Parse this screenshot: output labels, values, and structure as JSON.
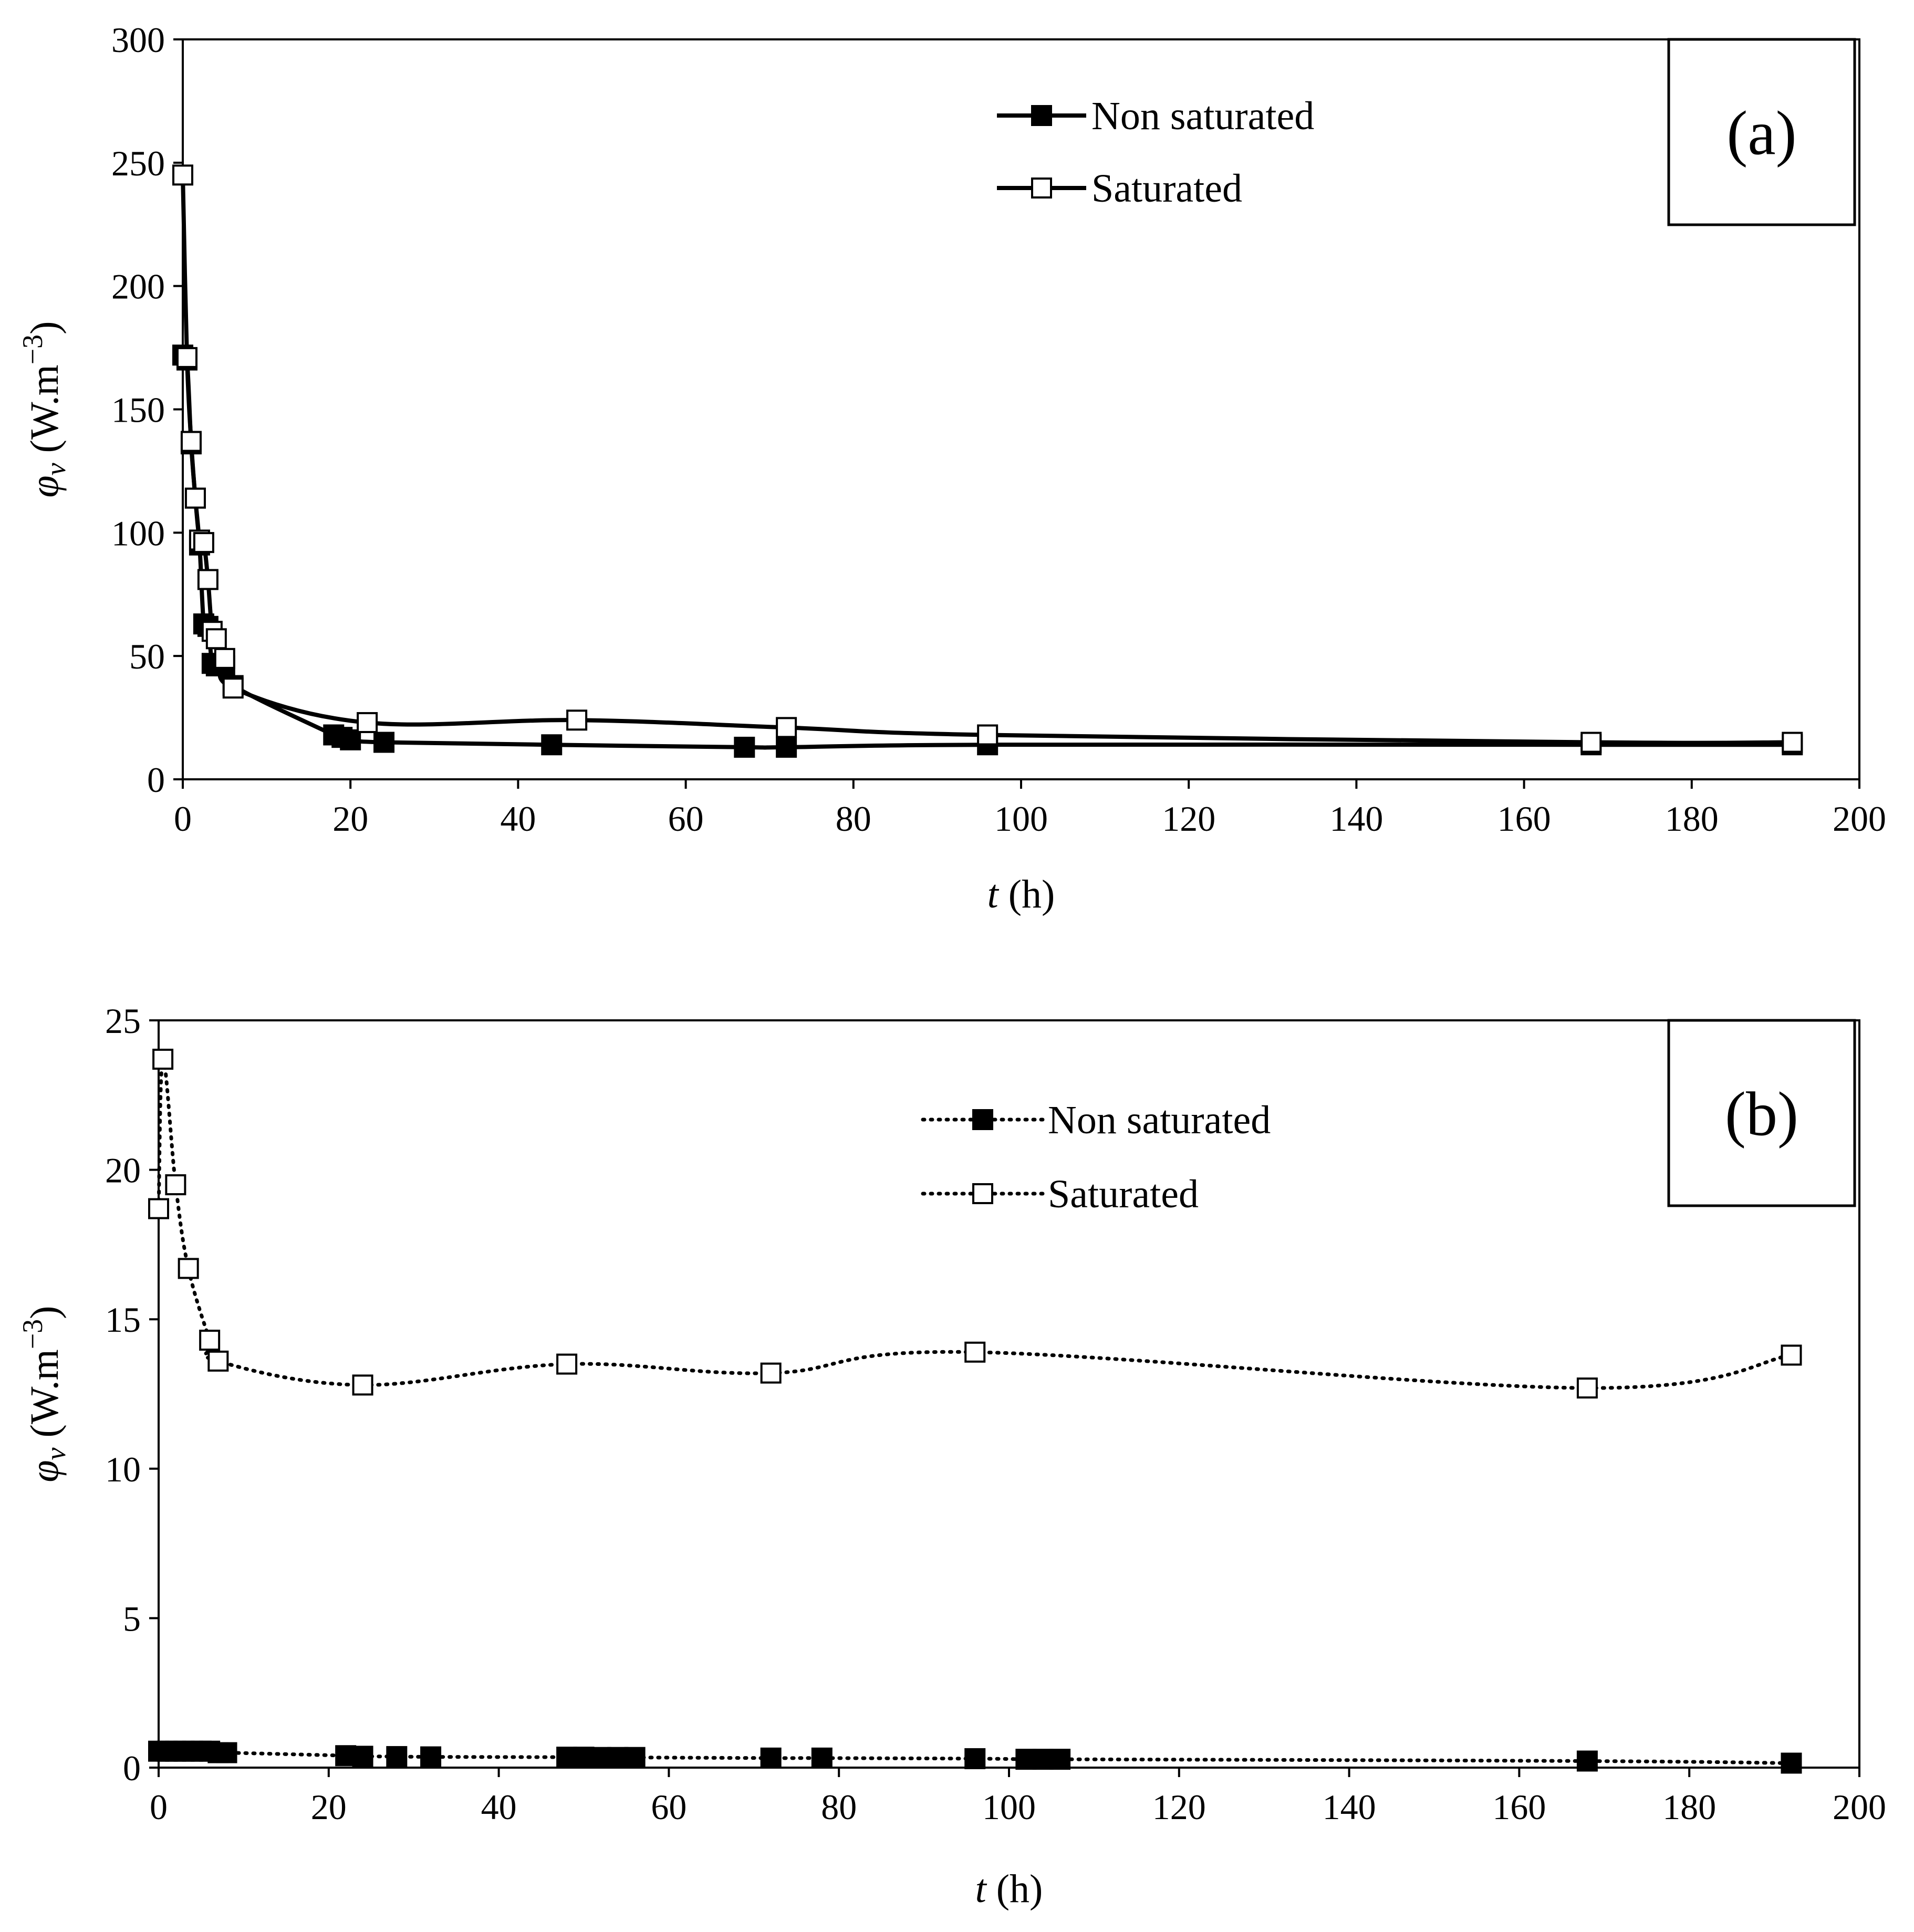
{
  "chart_data": [
    {
      "type": "line",
      "panel_label": "(a)",
      "xlabel_var": "t",
      "xlabel_unit": " (h)",
      "ylabel_var": "φ",
      "ylabel_sub": "v",
      "ylabel_unit": " (W.m",
      "ylabel_exp": "−3",
      "ylabel_close": ")",
      "xlim": [
        0,
        200
      ],
      "ylim": [
        0,
        300
      ],
      "xticks": [
        0,
        20,
        40,
        60,
        80,
        100,
        120,
        140,
        160,
        180,
        200
      ],
      "yticks": [
        0,
        50,
        100,
        150,
        200,
        250,
        300
      ],
      "grid": false,
      "legend_position": "top-center",
      "line_style": "solid",
      "series": [
        {
          "name": "Non saturated",
          "marker": "filled-square",
          "x": [
            0,
            0.5,
            1,
            1.5,
            2,
            2.5,
            3,
            3.5,
            4,
            5,
            6,
            18,
            19,
            20,
            24,
            44,
            67,
            72,
            96,
            168,
            192
          ],
          "y": [
            172,
            170,
            136,
            114,
            95,
            63,
            62,
            47,
            46,
            46,
            38,
            18,
            17,
            16,
            15,
            14,
            13,
            13,
            14,
            14,
            14
          ]
        },
        {
          "name": "Saturated",
          "marker": "open-square",
          "x": [
            0,
            0.5,
            1,
            1.5,
            2,
            2.5,
            3,
            3.5,
            4,
            5,
            6,
            22,
            47,
            72,
            96,
            168,
            192
          ],
          "y": [
            245,
            171,
            137,
            114,
            97,
            96,
            81,
            60,
            57,
            49,
            37,
            23,
            24,
            21,
            18,
            15,
            15
          ]
        }
      ]
    },
    {
      "type": "line",
      "panel_label": "(b)",
      "xlabel_var": "t",
      "xlabel_unit": " (h)",
      "ylabel_var": "φ",
      "ylabel_sub": "v",
      "ylabel_unit": " (W.m",
      "ylabel_exp": "−3",
      "ylabel_close": ")",
      "xlim": [
        0,
        200
      ],
      "ylim": [
        0,
        25
      ],
      "xticks": [
        0,
        20,
        40,
        60,
        80,
        100,
        120,
        140,
        160,
        180,
        200
      ],
      "yticks": [
        0,
        5,
        10,
        15,
        20,
        25
      ],
      "grid": false,
      "legend_position": "top-center",
      "line_style": "dotted",
      "series": [
        {
          "name": "Non saturated",
          "marker": "filled-square",
          "x": [
            0,
            1,
            2,
            3,
            4,
            5,
            6,
            7,
            8,
            22,
            24,
            28,
            32,
            48,
            50,
            52,
            54,
            56,
            72,
            78,
            96,
            102,
            104,
            106,
            168,
            192
          ],
          "y": [
            0.55,
            0.55,
            0.55,
            0.55,
            0.55,
            0.55,
            0.55,
            0.5,
            0.5,
            0.4,
            0.38,
            0.37,
            0.36,
            0.35,
            0.35,
            0.34,
            0.34,
            0.34,
            0.32,
            0.32,
            0.3,
            0.28,
            0.28,
            0.28,
            0.22,
            0.15
          ]
        },
        {
          "name": "Saturated",
          "marker": "open-square",
          "x": [
            0,
            0.5,
            2,
            3.5,
            6,
            7,
            24,
            48,
            72,
            96,
            168,
            192
          ],
          "y": [
            18.7,
            23.7,
            19.5,
            16.7,
            14.3,
            13.6,
            12.8,
            13.5,
            13.2,
            13.9,
            12.7,
            13.8
          ]
        }
      ]
    }
  ]
}
